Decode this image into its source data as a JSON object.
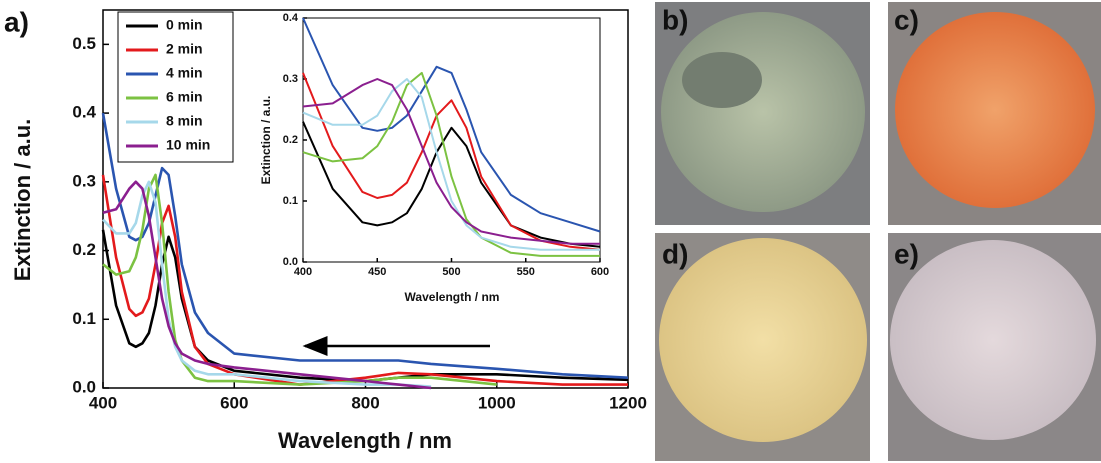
{
  "chart_data": [
    {
      "type": "line",
      "label": "a)",
      "x_label": "Wavelength / nm",
      "y_label": "Extinction / a.u.",
      "x": [
        400,
        420,
        440,
        450,
        460,
        470,
        480,
        490,
        500,
        510,
        520,
        540,
        560,
        600,
        700,
        800,
        850,
        900,
        1000,
        1100,
        1200
      ],
      "series": [
        {
          "name": "0 min",
          "color": "#000000",
          "values": [
            0.23,
            0.12,
            0.065,
            0.06,
            0.065,
            0.08,
            0.12,
            0.18,
            0.22,
            0.19,
            0.13,
            0.06,
            0.04,
            0.025,
            0.015,
            0.01,
            0.015,
            0.02,
            0.02,
            0.015,
            0.012
          ]
        },
        {
          "name": "2 min",
          "color": "#e31a1c",
          "values": [
            0.31,
            0.19,
            0.115,
            0.105,
            0.11,
            0.13,
            0.18,
            0.24,
            0.265,
            0.22,
            0.14,
            0.06,
            0.035,
            0.02,
            0.005,
            0.015,
            0.022,
            0.02,
            0.01,
            0.005,
            0.005
          ]
        },
        {
          "name": "4 min",
          "color": "#2a55b0",
          "values": [
            0.4,
            0.29,
            0.22,
            0.215,
            0.22,
            0.24,
            0.28,
            0.32,
            0.31,
            0.25,
            0.18,
            0.11,
            0.08,
            0.05,
            0.04,
            0.04,
            0.04,
            0.035,
            0.028,
            0.02,
            0.015
          ]
        },
        {
          "name": "6 min",
          "color": "#7cc242",
          "values": [
            0.18,
            0.165,
            0.17,
            0.19,
            0.23,
            0.29,
            0.31,
            0.24,
            0.14,
            0.07,
            0.04,
            0.015,
            0.01,
            0.01,
            0.005,
            0.01,
            0.015,
            0.015,
            0.005,
            null,
            null
          ]
        },
        {
          "name": "8 min",
          "color": "#a6d8ea",
          "values": [
            0.245,
            0.225,
            0.225,
            0.24,
            0.28,
            0.3,
            0.27,
            0.18,
            0.1,
            0.06,
            0.04,
            0.025,
            0.02,
            0.02,
            0.01,
            0.005,
            0.005,
            0.002,
            null,
            null,
            null
          ]
        },
        {
          "name": "10 min",
          "color": "#8b1f8f",
          "values": [
            0.255,
            0.26,
            0.29,
            0.3,
            0.29,
            0.25,
            0.19,
            0.13,
            0.09,
            0.065,
            0.05,
            0.04,
            0.035,
            0.03,
            0.02,
            0.01,
            0.005,
            0.0,
            null,
            null,
            null
          ]
        }
      ],
      "xlim": [
        400,
        1200
      ],
      "xticks": [
        400,
        600,
        800,
        1000,
        1200
      ],
      "ylim": [
        0,
        0.55
      ],
      "yticks": [
        {
          "value": 0,
          "label": "0.0"
        },
        0.1,
        0.2,
        0.3,
        0.4,
        0.5
      ],
      "legend": "upper left"
    },
    {
      "type": "line",
      "x_label": "Wavelength / nm",
      "y_label": "Extinction / a.u.",
      "x": [
        400,
        420,
        440,
        450,
        460,
        470,
        480,
        490,
        500,
        510,
        520,
        540,
        560,
        580,
        600
      ],
      "series": [
        {
          "color": "#000000",
          "values": [
            0.23,
            0.12,
            0.065,
            0.06,
            0.065,
            0.08,
            0.12,
            0.18,
            0.22,
            0.19,
            0.13,
            0.06,
            0.04,
            0.03,
            0.025
          ]
        },
        {
          "color": "#e31a1c",
          "values": [
            0.31,
            0.19,
            0.115,
            0.105,
            0.11,
            0.13,
            0.18,
            0.24,
            0.265,
            0.22,
            0.14,
            0.06,
            0.035,
            0.025,
            0.02
          ]
        },
        {
          "color": "#2a55b0",
          "values": [
            0.4,
            0.29,
            0.22,
            0.215,
            0.22,
            0.24,
            0.28,
            0.32,
            0.31,
            0.25,
            0.18,
            0.11,
            0.08,
            0.065,
            0.05
          ]
        },
        {
          "color": "#7cc242",
          "values": [
            0.18,
            0.165,
            0.17,
            0.19,
            0.23,
            0.29,
            0.31,
            0.24,
            0.14,
            0.07,
            0.04,
            0.015,
            0.01,
            0.01,
            0.01
          ]
        },
        {
          "color": "#a6d8ea",
          "values": [
            0.245,
            0.225,
            0.225,
            0.24,
            0.28,
            0.3,
            0.27,
            0.18,
            0.1,
            0.06,
            0.04,
            0.025,
            0.02,
            0.02,
            0.02
          ]
        },
        {
          "color": "#8b1f8f",
          "values": [
            0.255,
            0.26,
            0.29,
            0.3,
            0.29,
            0.25,
            0.19,
            0.13,
            0.09,
            0.065,
            0.05,
            0.04,
            0.035,
            0.03,
            0.03
          ]
        }
      ],
      "xlim": [
        400,
        600
      ],
      "xticks": [
        400,
        450,
        500,
        550,
        600
      ],
      "ylim": [
        0,
        0.4
      ],
      "yticks": [
        {
          "value": 0,
          "label": "0.0"
        },
        0.1,
        0.2,
        0.3,
        0.4
      ]
    }
  ],
  "photos": [
    {
      "label": "b)"
    },
    {
      "label": "c)"
    },
    {
      "label": "d)"
    },
    {
      "label": "e)"
    }
  ]
}
